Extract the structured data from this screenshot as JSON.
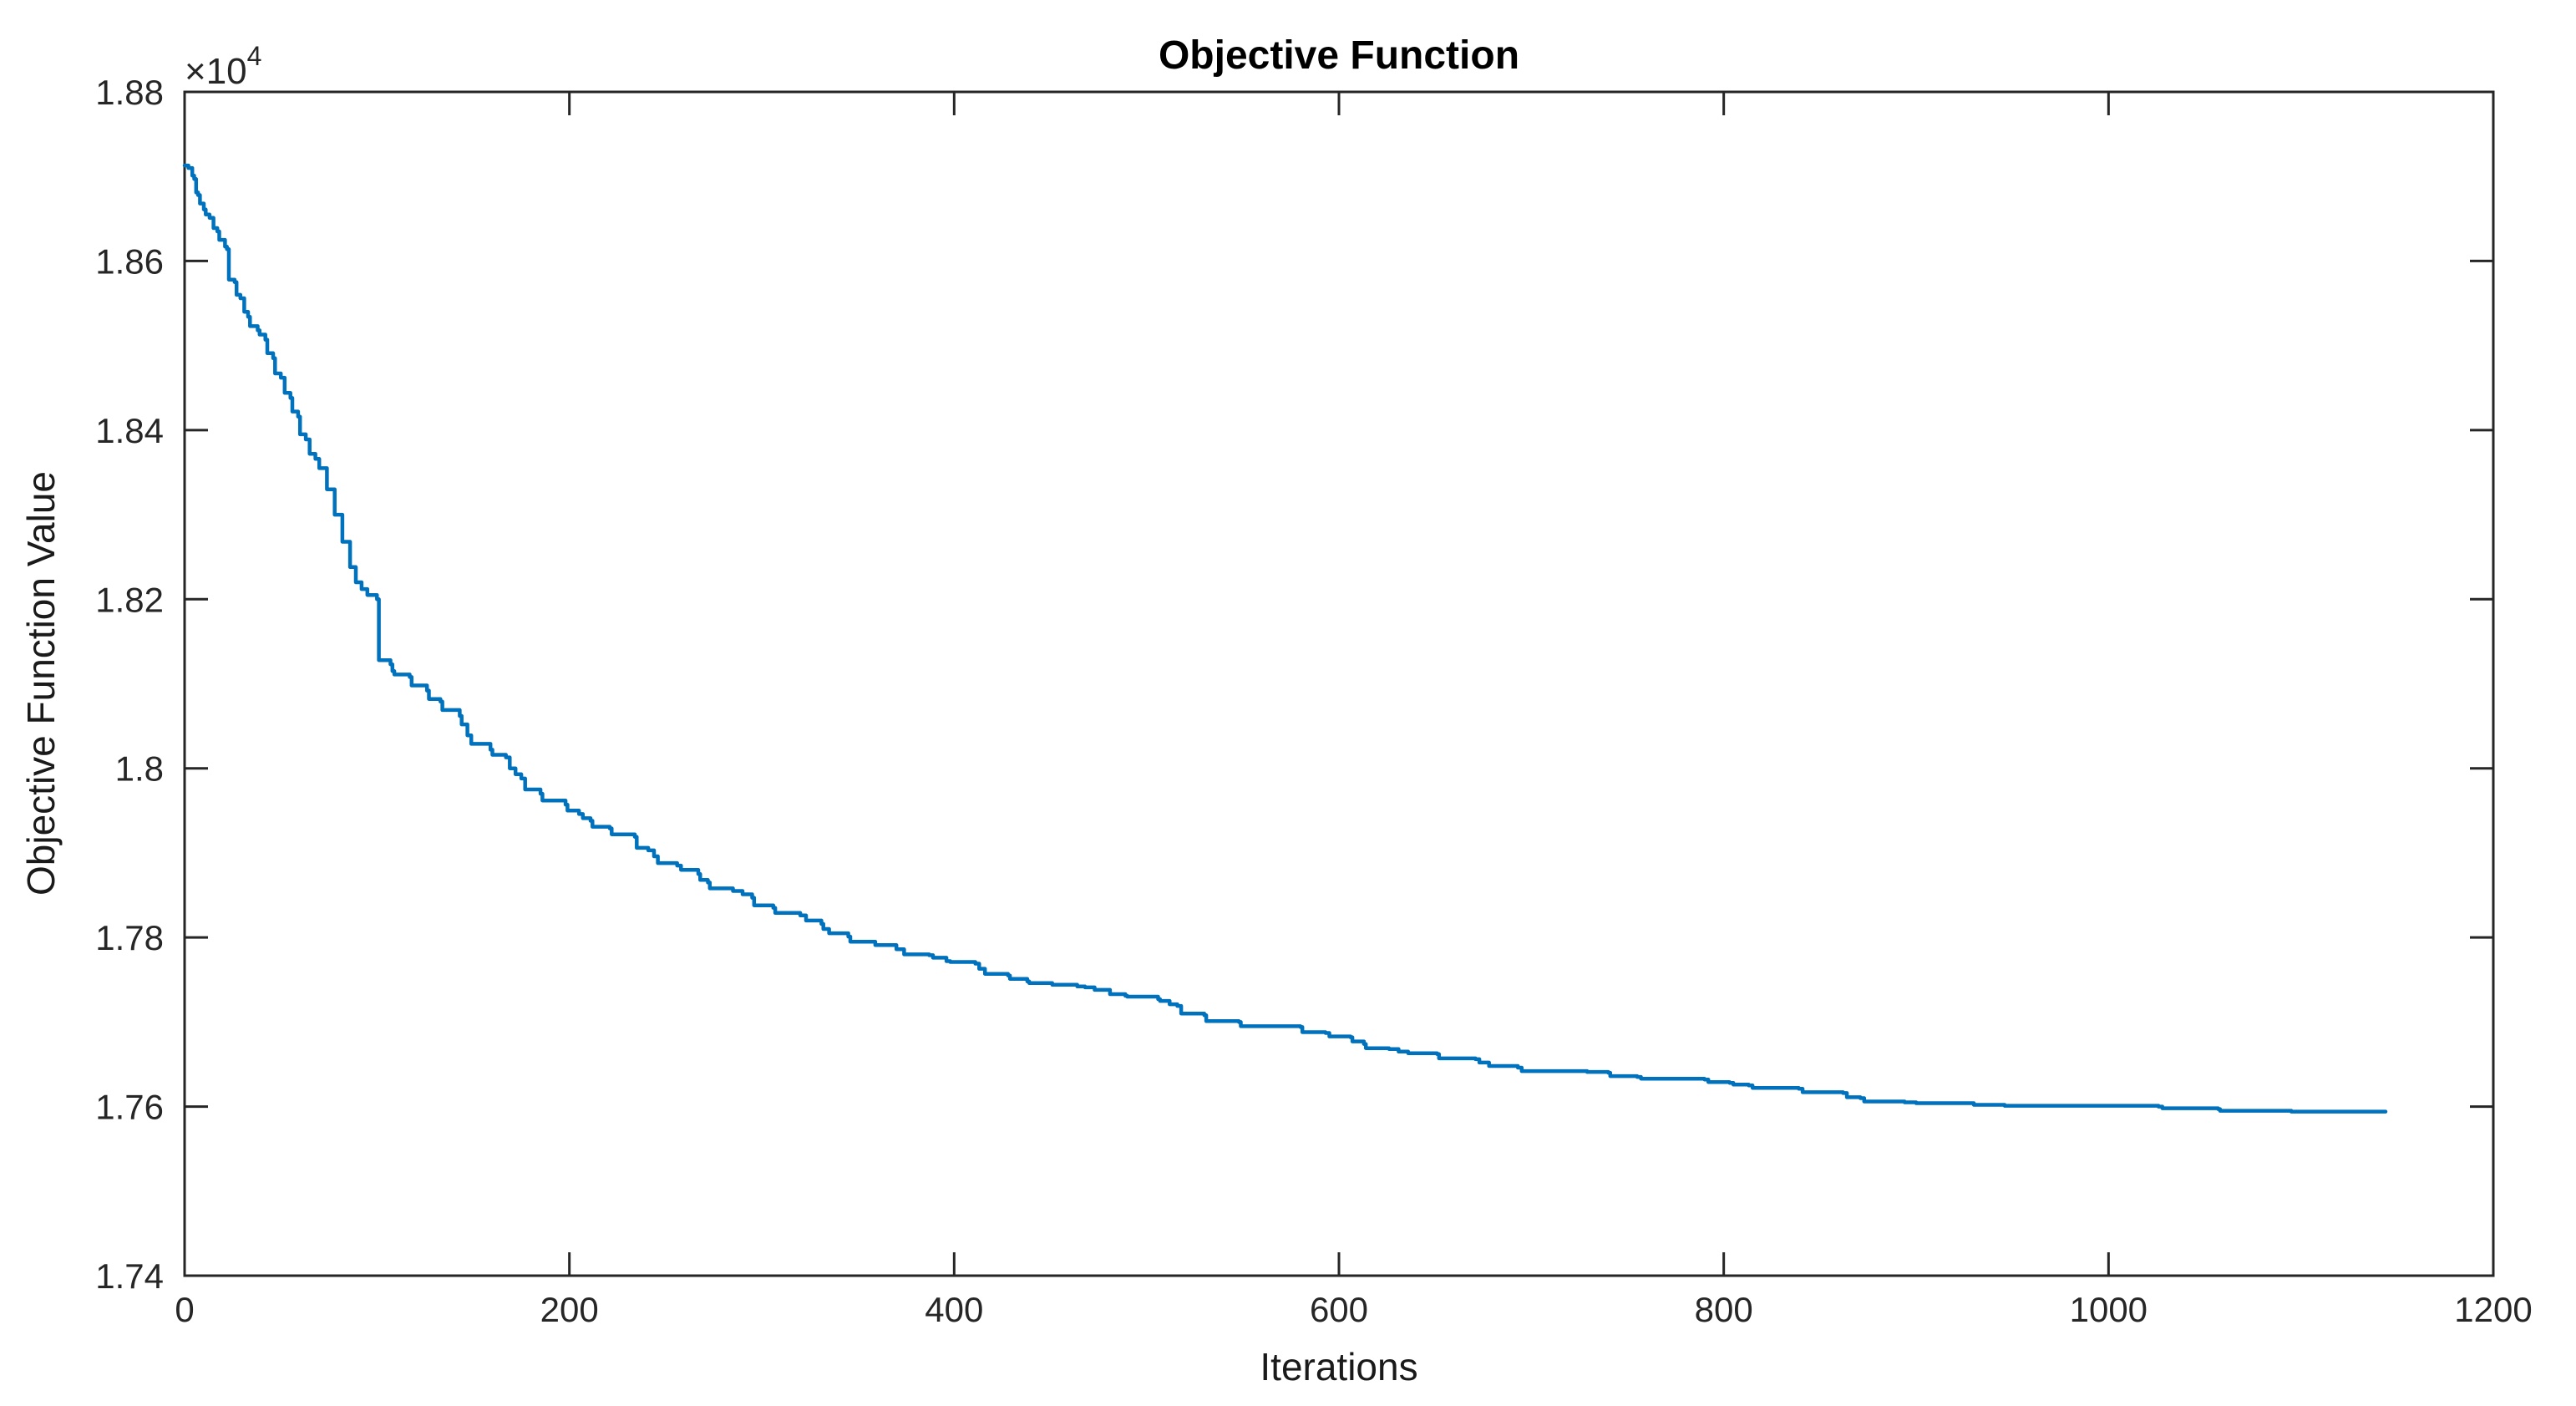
{
  "chart_data": {
    "type": "line",
    "title": "Objective Function",
    "xlabel": "Iterations",
    "ylabel": "Objective Function Value",
    "y_exponent": {
      "base": "×10",
      "power": "4"
    },
    "xlim": [
      0,
      1200
    ],
    "ylim": [
      17400,
      18800
    ],
    "x_ticks": [
      0,
      200,
      400,
      600,
      800,
      1000,
      1200
    ],
    "x_tick_labels": [
      "0",
      "200",
      "400",
      "600",
      "800",
      "1000",
      "1200"
    ],
    "y_ticks": [
      17400,
      17600,
      17800,
      18000,
      18200,
      18400,
      18600,
      18800
    ],
    "y_tick_labels": [
      "1.74",
      "1.76",
      "1.78",
      "1.8",
      "1.82",
      "1.84",
      "1.86",
      "1.88"
    ],
    "grid": false,
    "legend": null,
    "line_color": "#0072BD",
    "axis_color": "#262626",
    "series": [
      {
        "name": "objective-function-value",
        "points": [
          [
            0,
            18713
          ],
          [
            2,
            18710
          ],
          [
            4,
            18701
          ],
          [
            5,
            18697
          ],
          [
            6,
            18681
          ],
          [
            7,
            18678
          ],
          [
            8,
            18668
          ],
          [
            10,
            18661
          ],
          [
            11,
            18655
          ],
          [
            13,
            18651
          ],
          [
            15,
            18639
          ],
          [
            17,
            18635
          ],
          [
            18,
            18625
          ],
          [
            21,
            18617
          ],
          [
            22,
            18614
          ],
          [
            23,
            18578
          ],
          [
            26,
            18575
          ],
          [
            27,
            18560
          ],
          [
            29,
            18556
          ],
          [
            31,
            18540
          ],
          [
            33,
            18534
          ],
          [
            34,
            18523
          ],
          [
            38,
            18518
          ],
          [
            39,
            18513
          ],
          [
            42,
            18507
          ],
          [
            43,
            18491
          ],
          [
            46,
            18485
          ],
          [
            47,
            18467
          ],
          [
            50,
            18462
          ],
          [
            52,
            18444
          ],
          [
            55,
            18438
          ],
          [
            56,
            18422
          ],
          [
            59,
            18416
          ],
          [
            60,
            18395
          ],
          [
            63,
            18389
          ],
          [
            65,
            18372
          ],
          [
            68,
            18366
          ],
          [
            70,
            18355
          ],
          [
            74,
            18330
          ],
          [
            78,
            18300
          ],
          [
            82,
            18268
          ],
          [
            86,
            18238
          ],
          [
            89,
            18220
          ],
          [
            92,
            18212
          ],
          [
            95,
            18205
          ],
          [
            100,
            18200
          ],
          [
            101,
            18128
          ],
          [
            107,
            18123
          ],
          [
            108,
            18115
          ],
          [
            109,
            18111
          ],
          [
            117,
            18108
          ],
          [
            118,
            18098
          ],
          [
            126,
            18092
          ],
          [
            127,
            18082
          ],
          [
            133,
            18079
          ],
          [
            134,
            18069
          ],
          [
            143,
            18062
          ],
          [
            144,
            18052
          ],
          [
            147,
            18039
          ],
          [
            149,
            18029
          ],
          [
            159,
            18022
          ],
          [
            160,
            18016
          ],
          [
            167,
            18013
          ],
          [
            169,
            18000
          ],
          [
            172,
            17993
          ],
          [
            175,
            17988
          ],
          [
            177,
            17975
          ],
          [
            185,
            17970
          ],
          [
            186,
            17962
          ],
          [
            198,
            17957
          ],
          [
            199,
            17950
          ],
          [
            205,
            17946
          ],
          [
            207,
            17941
          ],
          [
            211,
            17938
          ],
          [
            212,
            17931
          ],
          [
            221,
            17929
          ],
          [
            222,
            17922
          ],
          [
            234,
            17919
          ],
          [
            235,
            17906
          ],
          [
            241,
            17903
          ],
          [
            244,
            17896
          ],
          [
            246,
            17888
          ],
          [
            256,
            17885
          ],
          [
            258,
            17880
          ],
          [
            267,
            17875
          ],
          [
            268,
            17868
          ],
          [
            272,
            17865
          ],
          [
            273,
            17858
          ],
          [
            285,
            17855
          ],
          [
            290,
            17851
          ],
          [
            295,
            17847
          ],
          [
            296,
            17838
          ],
          [
            306,
            17835
          ],
          [
            307,
            17829
          ],
          [
            320,
            17826
          ],
          [
            323,
            17820
          ],
          [
            331,
            17816
          ],
          [
            332,
            17810
          ],
          [
            335,
            17805
          ],
          [
            345,
            17801
          ],
          [
            346,
            17795
          ],
          [
            359,
            17791
          ],
          [
            370,
            17786
          ],
          [
            374,
            17780
          ],
          [
            387,
            17779
          ],
          [
            389,
            17776
          ],
          [
            396,
            17772
          ],
          [
            398,
            17771
          ],
          [
            411,
            17769
          ],
          [
            413,
            17763
          ],
          [
            416,
            17757
          ],
          [
            428,
            17755
          ],
          [
            429,
            17751
          ],
          [
            438,
            17748
          ],
          [
            439,
            17746
          ],
          [
            451,
            17744
          ],
          [
            464,
            17742
          ],
          [
            468,
            17741
          ],
          [
            473,
            17738
          ],
          [
            481,
            17733
          ],
          [
            489,
            17731
          ],
          [
            490,
            17730
          ],
          [
            506,
            17727
          ],
          [
            507,
            17725
          ],
          [
            512,
            17721
          ],
          [
            516,
            17719
          ],
          [
            518,
            17710
          ],
          [
            530,
            17708
          ],
          [
            531,
            17701
          ],
          [
            548,
            17700
          ],
          [
            549,
            17695
          ],
          [
            580,
            17694
          ],
          [
            581,
            17688
          ],
          [
            593,
            17687
          ],
          [
            595,
            17683
          ],
          [
            606,
            17682
          ],
          [
            607,
            17677
          ],
          [
            613,
            17674
          ],
          [
            614,
            17669
          ],
          [
            626,
            17668
          ],
          [
            631,
            17665
          ],
          [
            636,
            17663
          ],
          [
            651,
            17662
          ],
          [
            652,
            17657
          ],
          [
            671,
            17656
          ],
          [
            673,
            17652
          ],
          [
            678,
            17648
          ],
          [
            693,
            17646
          ],
          [
            695,
            17642
          ],
          [
            729,
            17641
          ],
          [
            740,
            17640
          ],
          [
            741,
            17636
          ],
          [
            755,
            17635
          ],
          [
            757,
            17633
          ],
          [
            790,
            17632
          ],
          [
            792,
            17629
          ],
          [
            803,
            17628
          ],
          [
            805,
            17626
          ],
          [
            813,
            17625
          ],
          [
            815,
            17622
          ],
          [
            839,
            17621
          ],
          [
            841,
            17617
          ],
          [
            862,
            17616
          ],
          [
            864,
            17611
          ],
          [
            871,
            17610
          ],
          [
            873,
            17606
          ],
          [
            894,
            17605
          ],
          [
            900,
            17604
          ],
          [
            930,
            17602
          ],
          [
            946,
            17601
          ],
          [
            1026,
            17600
          ],
          [
            1028,
            17598
          ],
          [
            1057,
            17597
          ],
          [
            1058,
            17595
          ],
          [
            1093,
            17595
          ],
          [
            1095,
            17594
          ],
          [
            1144,
            17594
          ]
        ]
      }
    ]
  }
}
